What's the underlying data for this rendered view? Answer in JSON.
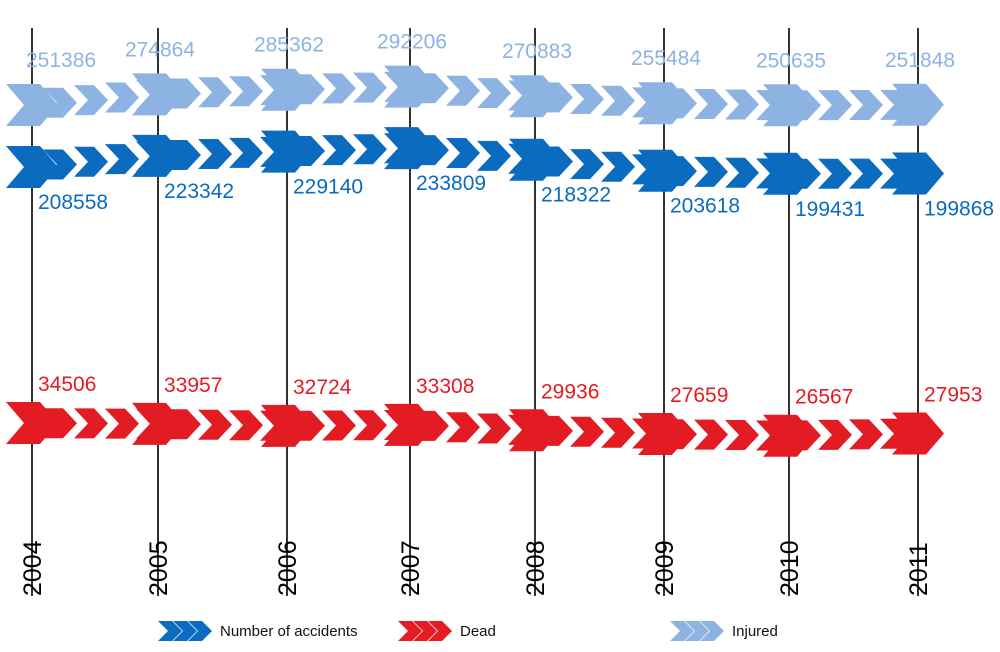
{
  "chart_data": {
    "type": "line",
    "categories": [
      "2004",
      "2005",
      "2006",
      "2007",
      "2008",
      "2009",
      "2010",
      "2011"
    ],
    "series": [
      {
        "name": "Injured",
        "values": [
          251386,
          274864,
          285362,
          292206,
          270883,
          255484,
          250635,
          251848
        ],
        "color": "#8db3e2"
      },
      {
        "name": "Number of accidents",
        "values": [
          208558,
          223342,
          229140,
          233809,
          218322,
          203618,
          199431,
          199868
        ],
        "color": "#0a6bbf"
      },
      {
        "name": "Dead",
        "values": [
          34506,
          33957,
          32724,
          33308,
          29936,
          27659,
          26567,
          27953
        ],
        "color": "#e31b23"
      }
    ],
    "value_labels": {
      "Injured": [
        "251386",
        "274864",
        "285362",
        "292206",
        "270883",
        "255484",
        "250635",
        "251848"
      ],
      "Number of accidents": [
        "208558",
        "223342",
        "229140",
        "233809",
        "218322",
        "203618",
        "199431",
        "199868"
      ],
      "Dead": [
        "34506",
        "33957",
        "32724",
        "33308",
        "29936",
        "27659",
        "26567",
        "27953"
      ]
    },
    "legend": {
      "position": "bottom",
      "items": [
        {
          "label": "Number of accidents",
          "color": "#0a6bbf",
          "icon": "blue-chevrons-icon"
        },
        {
          "label": "Dead",
          "color": "#e31b23",
          "icon": "red-chevrons-icon"
        },
        {
          "label": "Injured",
          "color": "#8db3e2",
          "icon": "light-blue-chevrons-icon"
        }
      ]
    },
    "grid": "vertical year lines"
  }
}
